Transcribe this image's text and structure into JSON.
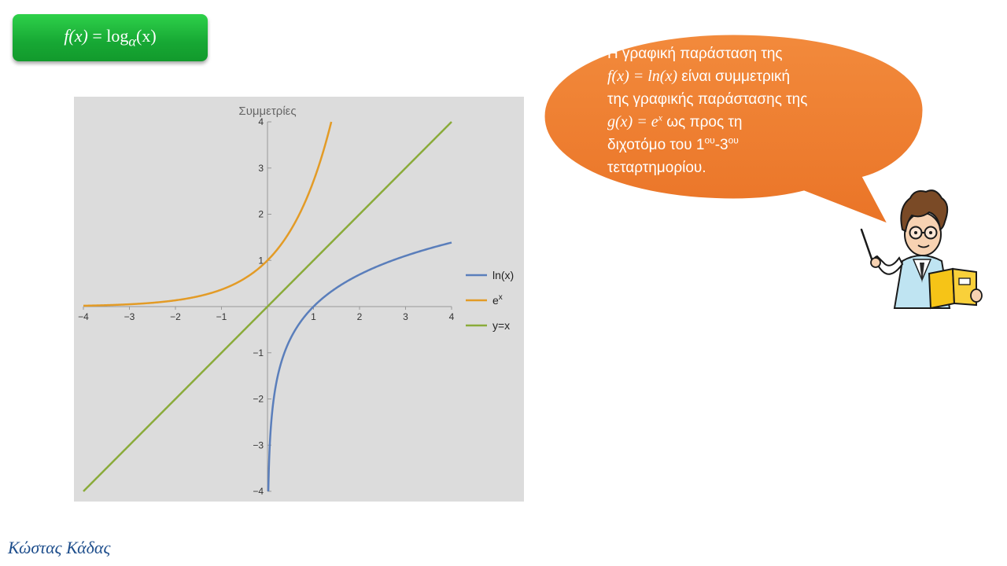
{
  "formula": {
    "lhs": "f(x)",
    "equals": "=",
    "func": "log",
    "base": "α",
    "arg": "(x)"
  },
  "bubble": {
    "line1": "Η γραφική παράσταση της",
    "f_expr": "f(x) = ln(x)",
    "line2_rest": "είναι συμμετρική",
    "line3": "της γραφικής παράστασης της",
    "g_expr_lhs": "g(x) = e",
    "g_expr_exp": "x",
    "line4_rest": "ως προς τη",
    "line5_a": "διχοτόμο του 1",
    "sup1": "ου",
    "line5_b": "-3",
    "sup2": "ου",
    "line6": "τεταρτημορίου."
  },
  "signature": "Κώστας Κάδας",
  "colors": {
    "ln": "#5a7ebb",
    "exp": "#e39b26",
    "diag": "#8aab3a",
    "panel_bg": "#dcdcdc",
    "bubble": "#ee7d31",
    "formula": "#19ac35"
  },
  "chart_data": {
    "type": "line",
    "title": "Συμμετρίες",
    "xlim": [
      -4,
      4
    ],
    "ylim": [
      -4,
      4
    ],
    "x_ticks": [
      -4,
      -3,
      -2,
      -1,
      1,
      2,
      3,
      4
    ],
    "y_ticks": [
      -4,
      -3,
      -2,
      -1,
      1,
      2,
      3,
      4
    ],
    "x_tick_labels": [
      "−4",
      "−3",
      "−2",
      "−1",
      "1",
      "2",
      "3",
      "4"
    ],
    "y_tick_labels": [
      "−4",
      "−3",
      "−2",
      "−1",
      "1",
      "2",
      "3",
      "4"
    ],
    "legend_position": "right",
    "series": [
      {
        "name": "ln(x)",
        "legend_base": "ln(x)",
        "legend_sup": "",
        "func": "ln",
        "color": "#5a7ebb",
        "x": [
          0.0183,
          0.05,
          0.1,
          0.2,
          0.3,
          0.5,
          0.75,
          1,
          1.5,
          2,
          2.5,
          3,
          3.5,
          4
        ],
        "y": [
          -4,
          -3.0,
          -2.3,
          -1.61,
          -1.2,
          -0.69,
          -0.29,
          0,
          0.41,
          0.69,
          0.92,
          1.1,
          1.25,
          1.39
        ]
      },
      {
        "name": "eˣ",
        "legend_base": "e",
        "legend_sup": "x",
        "func": "exp",
        "color": "#e39b26",
        "x": [
          -4,
          -3.5,
          -3,
          -2.5,
          -2,
          -1.5,
          -1,
          -0.5,
          0,
          0.25,
          0.5,
          0.75,
          1,
          1.25,
          1.386
        ],
        "y": [
          0.02,
          0.03,
          0.05,
          0.08,
          0.14,
          0.22,
          0.37,
          0.61,
          1,
          1.28,
          1.65,
          2.12,
          2.72,
          3.49,
          4
        ]
      },
      {
        "name": "y=x",
        "legend_base": "y=x",
        "legend_sup": "",
        "func": "identity",
        "color": "#8aab3a",
        "x": [
          -4,
          4
        ],
        "y": [
          -4,
          4
        ]
      }
    ]
  }
}
